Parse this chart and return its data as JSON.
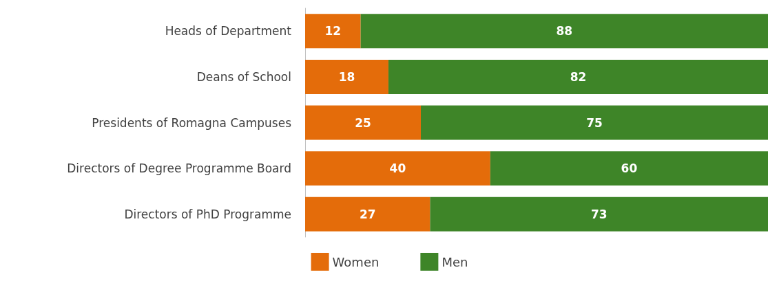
{
  "chart_data": {
    "type": "bar",
    "orientation": "horizontal",
    "stacked": true,
    "data_labels": true,
    "legend": "bottom",
    "tick_labels": "y",
    "xlim": [
      0,
      100
    ],
    "categories": [
      "Heads of Department",
      "Deans of School",
      "Presidents of Romagna Campuses",
      "Directors of Degree Programme Board",
      "Directors of PhD Programme"
    ],
    "series": [
      {
        "name": "Women",
        "color": "#e46c0a",
        "values": [
          12,
          18,
          25,
          40,
          27
        ]
      },
      {
        "name": "Men",
        "color": "#3e8528",
        "values": [
          88,
          82,
          75,
          60,
          73
        ]
      }
    ]
  }
}
